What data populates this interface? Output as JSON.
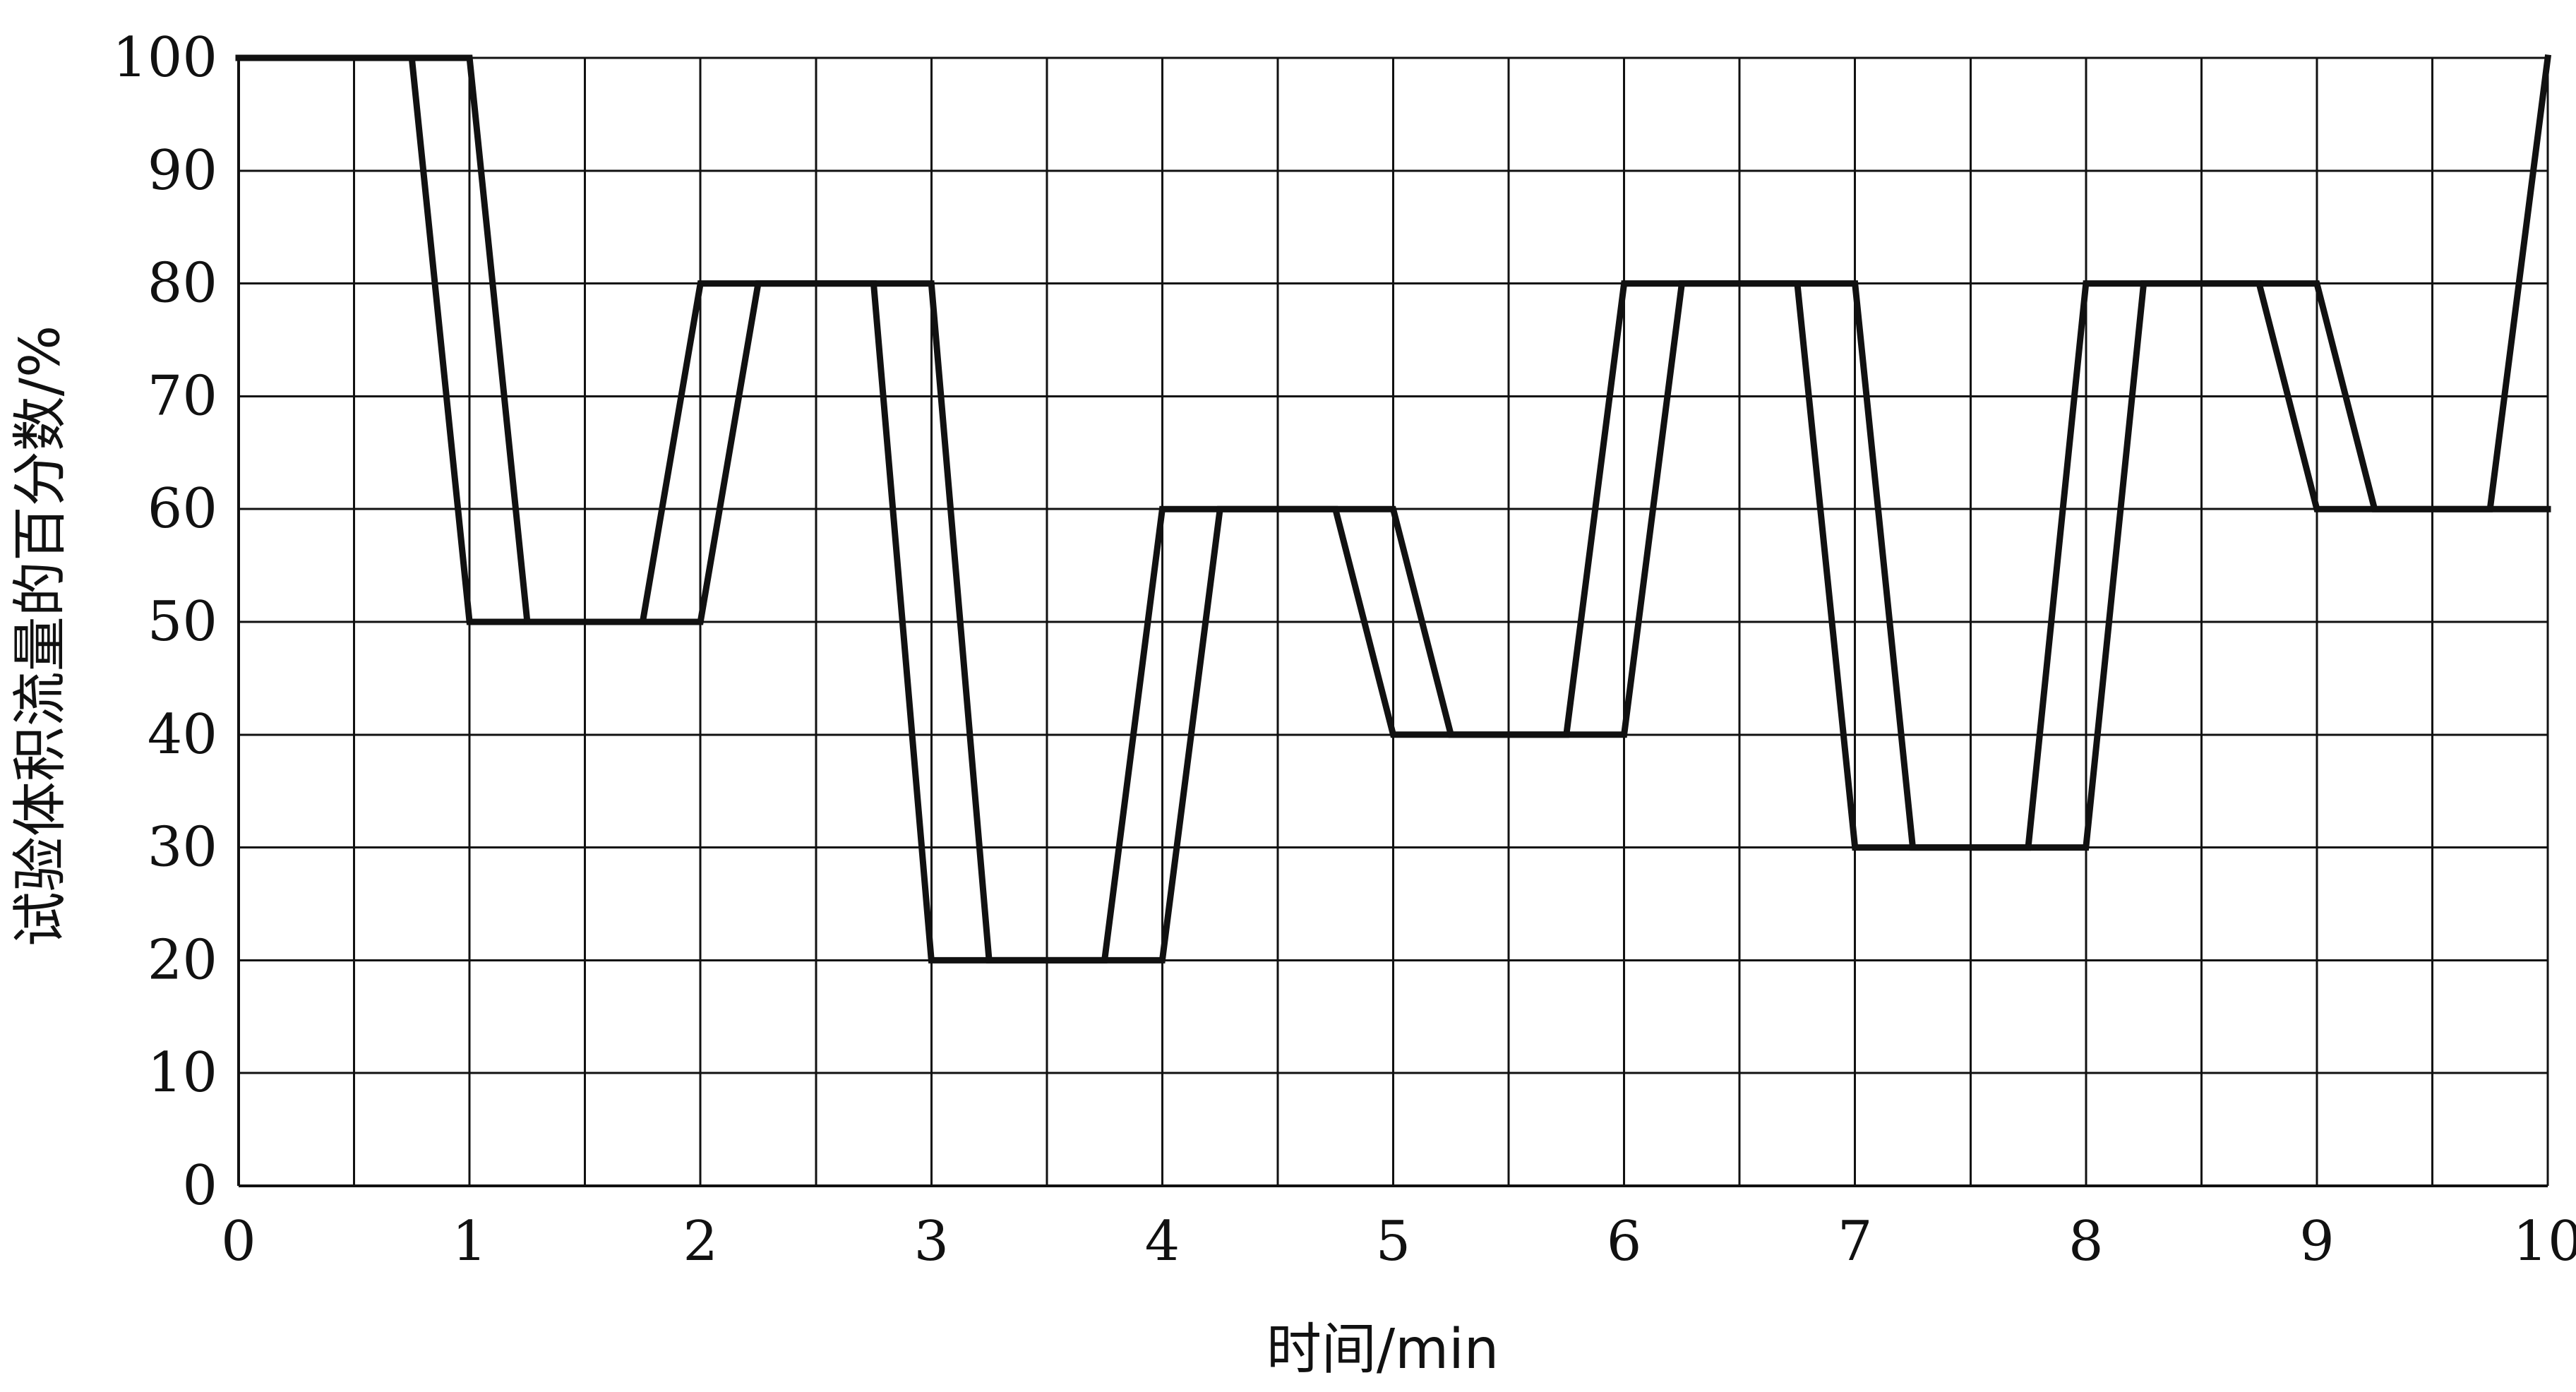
{
  "chart_data": {
    "type": "line",
    "title": "",
    "xlabel": "时间/min",
    "ylabel": "试验体积流量的百分数/%",
    "xlim": [
      0,
      10
    ],
    "ylim": [
      0,
      100
    ],
    "x_ticks": [
      0,
      1,
      2,
      3,
      4,
      5,
      6,
      7,
      8,
      9,
      10
    ],
    "y_ticks": [
      0,
      10,
      20,
      30,
      40,
      50,
      60,
      70,
      80,
      90,
      100
    ],
    "grid": true,
    "line_color": "#111111",
    "grid_color": "#111111",
    "background": "#ffffff",
    "series": [
      {
        "x": [
          0,
          0.75,
          1,
          1.75,
          2,
          2.75,
          3,
          3.75,
          4,
          4.75,
          5,
          5.75,
          6,
          6.75,
          7,
          7.75,
          8,
          8.75,
          9,
          9.75,
          10
        ],
        "y": [
          100,
          100,
          50,
          50,
          80,
          80,
          20,
          20,
          60,
          60,
          40,
          40,
          80,
          80,
          30,
          30,
          80,
          80,
          60,
          60,
          100
        ]
      },
      {
        "x": [
          0,
          1,
          1.25,
          2,
          2.25,
          3,
          3.25,
          4,
          4.25,
          5,
          5.25,
          6,
          6.25,
          7,
          7.25,
          8,
          8.25,
          9,
          9.25,
          10
        ],
        "y": [
          100,
          100,
          50,
          50,
          80,
          80,
          20,
          20,
          60,
          60,
          40,
          40,
          80,
          80,
          30,
          30,
          80,
          80,
          60,
          60
        ]
      }
    ]
  }
}
